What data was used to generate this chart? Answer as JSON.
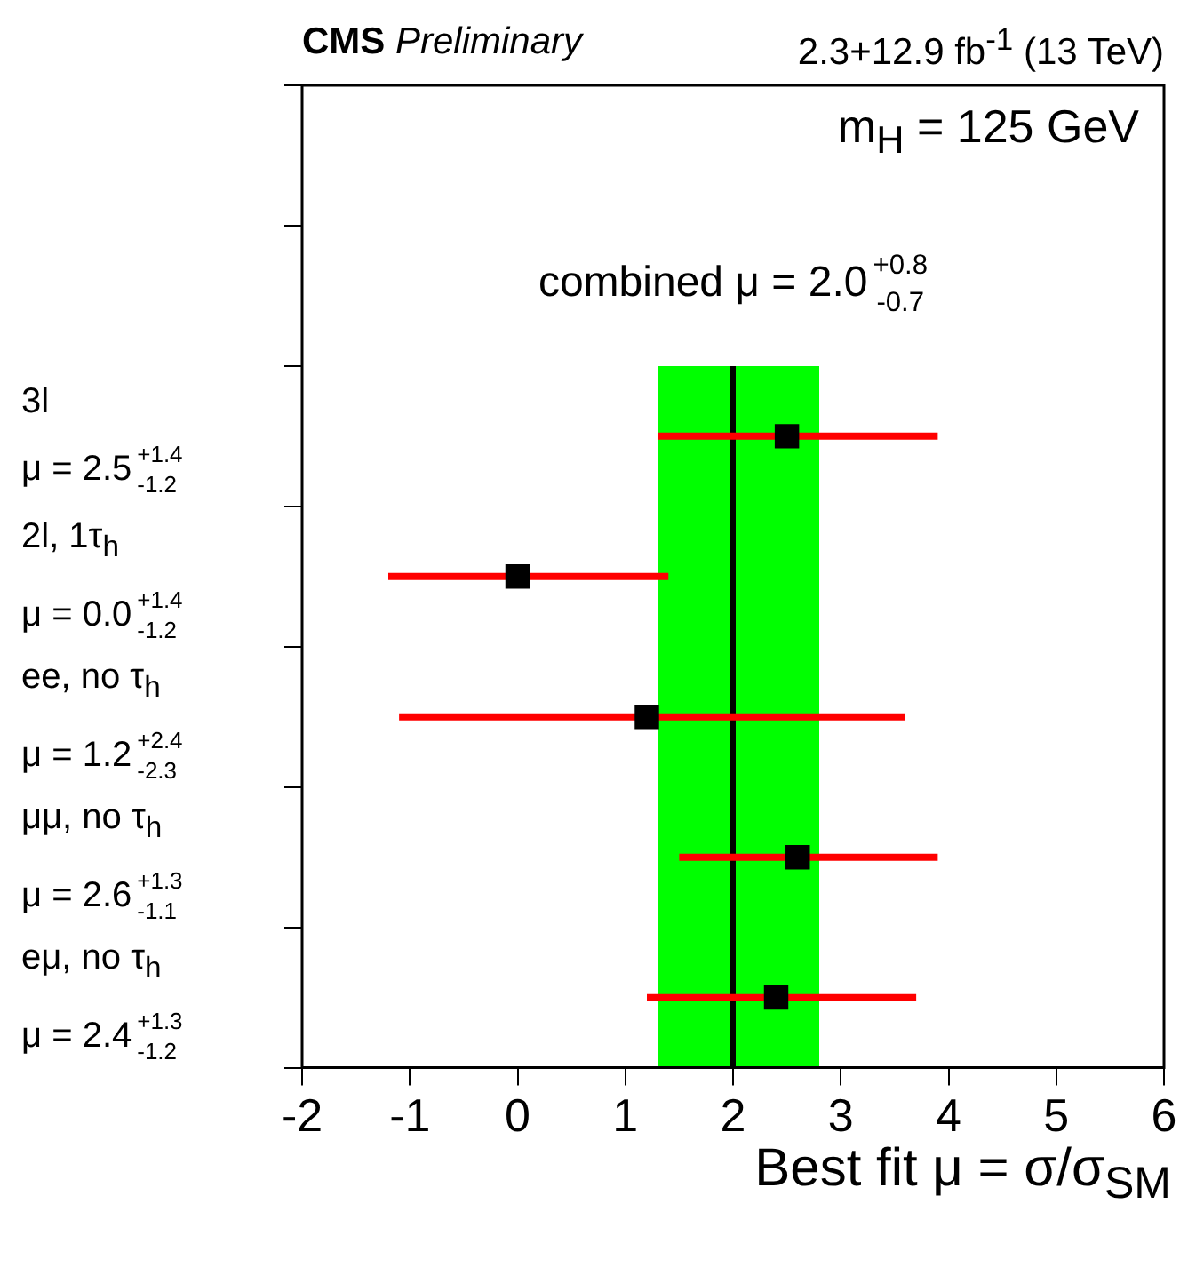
{
  "chart_data": {
    "type": "scatter",
    "orientation": "horizontal",
    "title": "CMS Preliminary",
    "subtitle": "2.3+12.9 fb$^{-1}$ (13 TeV)",
    "xlabel": "Best fit μ = σ/σ$_{SM}$",
    "annotations": [
      "m$_{H}$ = 125 GeV",
      "combined μ = 2.0$^{+0.8}$$_{-0.7}$"
    ],
    "categories": [
      null,
      null,
      "3l\nμ = 2.5$^{+1.4}$$_{-1.2}$",
      "2l, 1τ$_{h}$\nμ = 0.0$^{+1.4}$$_{-1.2}$",
      "ee, no τ$_{h}$\nμ = 1.2$^{+2.4}$$_{-2.3}$",
      "μμ, no τ$_{h}$\nμ = 2.6$^{+1.3}$$_{-1.1}$",
      "eμ, no τ$_{h}$\nμ = 2.4$^{+1.3}$$_{-1.2}$"
    ],
    "values": [
      null,
      null,
      2.5,
      0.0,
      1.2,
      2.6,
      2.4
    ],
    "errors": [
      null,
      null,
      [
        1.3,
        3.9
      ],
      [
        -1.2,
        1.4
      ],
      [
        -1.1,
        3.6
      ],
      [
        1.5,
        3.9
      ],
      [
        1.2,
        3.7
      ]
    ],
    "color": "#000000",
    "marker": "square",
    "xlim": [
      -2,
      6
    ],
    "xticks": [
      -2,
      -1,
      0,
      1,
      2,
      3,
      4,
      5,
      6
    ],
    "ref_lines": [
      {
        "axis": "x",
        "value": 2.0,
        "color": "#000000"
      }
    ],
    "bands": [
      {
        "axis": "x",
        "from": 1.3,
        "to": 2.8,
        "color": "#00ff00"
      }
    ],
    "legend": false,
    "grid": false
  }
}
